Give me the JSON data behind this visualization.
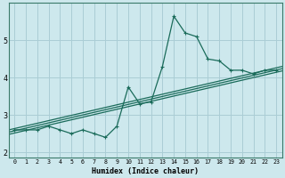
{
  "xlabel": "Humidex (Indice chaleur)",
  "ylabel": "",
  "background_color": "#cde8ed",
  "grid_color": "#aacdd5",
  "line_color": "#1a6b5a",
  "x_data": [
    0,
    1,
    2,
    3,
    4,
    5,
    6,
    7,
    8,
    9,
    10,
    11,
    12,
    13,
    14,
    15,
    16,
    17,
    18,
    19,
    20,
    21,
    22,
    23
  ],
  "y_data": [
    2.6,
    2.6,
    2.6,
    2.7,
    2.6,
    2.5,
    2.6,
    2.5,
    2.4,
    2.7,
    3.75,
    3.3,
    3.35,
    4.3,
    5.65,
    5.2,
    5.1,
    4.5,
    4.45,
    4.2,
    4.2,
    4.1,
    4.2,
    4.2
  ],
  "trend_lines": [
    {
      "x0": -0.5,
      "x1": 23.5,
      "y0": 2.48,
      "y1": 4.18
    },
    {
      "x0": -0.5,
      "x1": 23.5,
      "y0": 2.54,
      "y1": 4.24
    },
    {
      "x0": -0.5,
      "x1": 23.5,
      "y0": 2.6,
      "y1": 4.3
    }
  ],
  "ylim": [
    1.85,
    6.0
  ],
  "xlim": [
    -0.5,
    23.5
  ],
  "yticks": [
    2,
    3,
    4,
    5
  ],
  "xticks": [
    0,
    1,
    2,
    3,
    4,
    5,
    6,
    7,
    8,
    9,
    10,
    11,
    12,
    13,
    14,
    15,
    16,
    17,
    18,
    19,
    20,
    21,
    22,
    23
  ]
}
